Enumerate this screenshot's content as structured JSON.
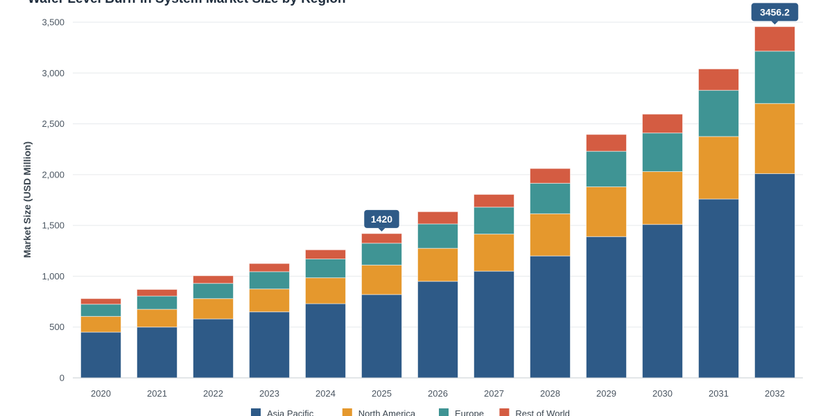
{
  "chart_data": {
    "type": "bar",
    "stacked": true,
    "title": "Wafer Level Burn-in System Market Size by Region",
    "ylabel": "Market Size (USD Million)",
    "xlabel": "",
    "ylim": [
      0,
      3500
    ],
    "yticks": [
      "0",
      "500",
      "1,000",
      "1,500",
      "2,000",
      "2,500",
      "3,000",
      "3,500"
    ],
    "grid": true,
    "legend_position": "bottom",
    "categories": [
      "2020",
      "2021",
      "2022",
      "2023",
      "2024",
      "2025",
      "2026",
      "2027",
      "2028",
      "2029",
      "2030",
      "2031",
      "2032"
    ],
    "series": [
      {
        "name": "Asia Pacific",
        "color": "#2e5a87",
        "values": [
          450,
          500,
          580,
          650,
          730,
          820,
          950,
          1050,
          1200,
          1390,
          1510,
          1760,
          2010
        ]
      },
      {
        "name": "North America",
        "color": "#e5982d",
        "values": [
          155,
          175,
          200,
          225,
          255,
          290,
          325,
          365,
          415,
          490,
          520,
          615,
          690
        ]
      },
      {
        "name": "Europe",
        "color": "#3f9494",
        "values": [
          120,
          130,
          150,
          170,
          185,
          215,
          240,
          265,
          300,
          350,
          380,
          455,
          515
        ]
      },
      {
        "name": "Rest of World",
        "color": "#d45c42",
        "values": [
          55,
          65,
          75,
          80,
          90,
          95,
          120,
          125,
          145,
          165,
          185,
          210,
          241.2
        ]
      }
    ],
    "annotations": [
      {
        "category": "2025",
        "label": "1420"
      },
      {
        "category": "2032",
        "label": "3456.2"
      }
    ]
  }
}
